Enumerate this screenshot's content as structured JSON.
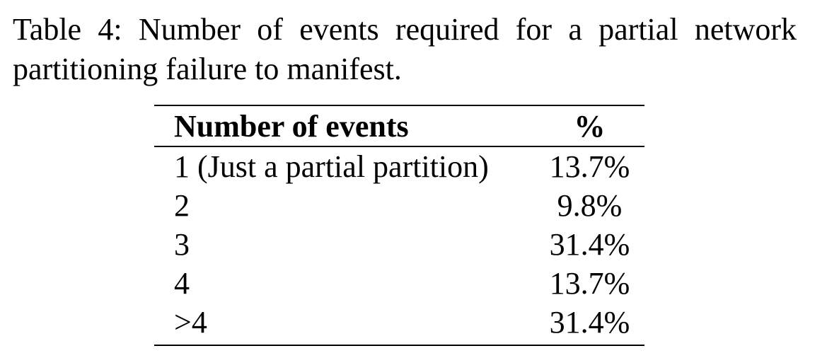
{
  "caption": "Table 4: Number of events required for a partial network partitioning failure to manifest.",
  "table": {
    "headers": [
      "Number of events",
      "%"
    ],
    "rows": [
      [
        "1 (Just a partial partition)",
        "13.7%"
      ],
      [
        "2",
        "9.8%"
      ],
      [
        "3",
        "31.4%"
      ],
      [
        "4",
        "13.7%"
      ],
      [
        ">4",
        "31.4%"
      ]
    ]
  }
}
